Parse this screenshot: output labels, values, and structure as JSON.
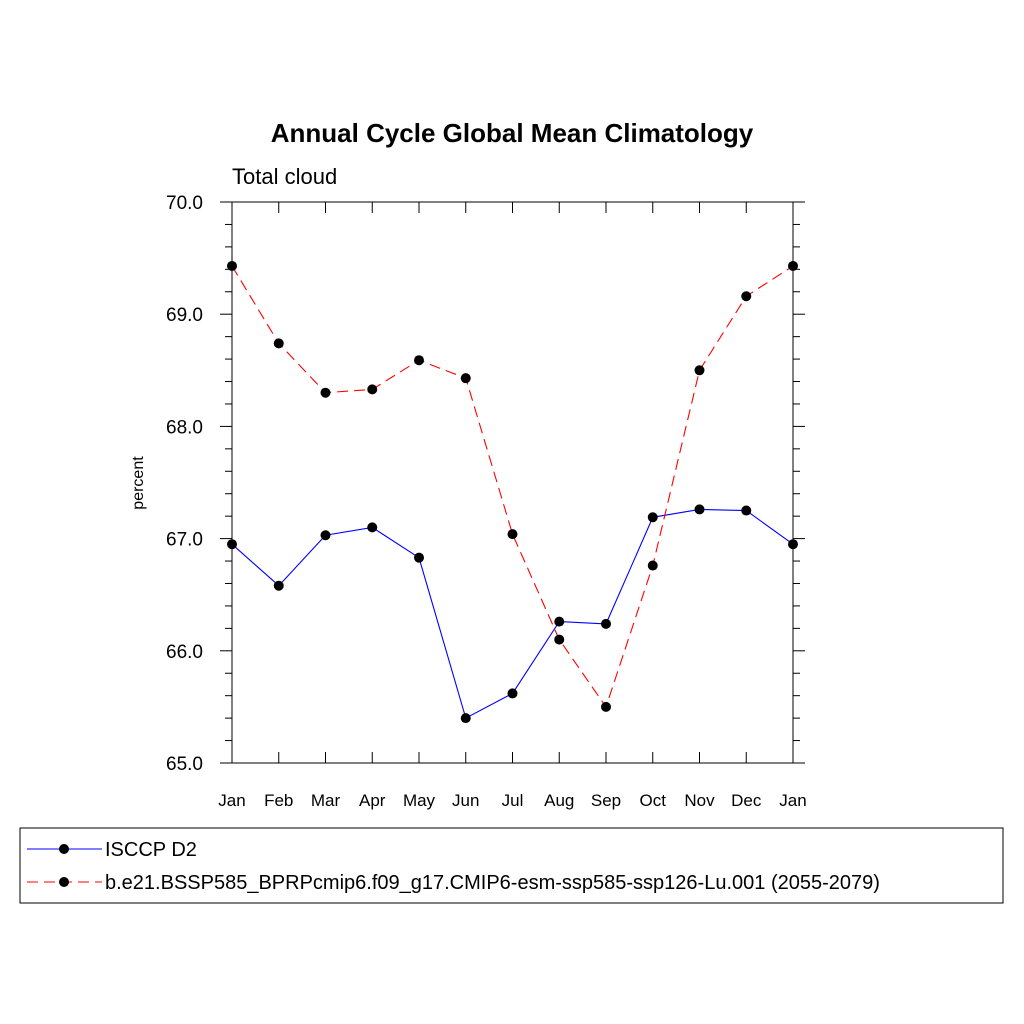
{
  "chart_data": {
    "type": "line",
    "title": "Annual Cycle Global Mean Climatology",
    "subtitle": "Total cloud",
    "xlabel": "",
    "ylabel": "percent",
    "categories": [
      "Jan",
      "Feb",
      "Mar",
      "Apr",
      "May",
      "Jun",
      "Jul",
      "Aug",
      "Sep",
      "Oct",
      "Nov",
      "Dec",
      "Jan"
    ],
    "ylim": [
      65.0,
      70.0
    ],
    "yticks": [
      "65.0",
      "66.0",
      "67.0",
      "68.0",
      "69.0",
      "70.0"
    ],
    "grid": false,
    "legend_position": "bottom",
    "series": [
      {
        "name": "ISCCP D2",
        "color": "#0000ff",
        "dash": "solid",
        "values": [
          66.95,
          66.58,
          67.03,
          67.1,
          66.83,
          65.4,
          65.62,
          66.26,
          66.24,
          67.19,
          67.26,
          67.25,
          66.95
        ]
      },
      {
        "name": "b.e21.BSSP585_BPRPcmip6.f09_g17.CMIP6-esm-ssp585-ssp126-Lu.001 (2055-2079)",
        "color": "#ff0000",
        "dash": "dashed",
        "values": [
          69.43,
          68.74,
          68.3,
          68.33,
          68.59,
          68.43,
          67.04,
          66.1,
          65.5,
          66.76,
          68.5,
          69.16,
          69.43
        ]
      }
    ]
  }
}
